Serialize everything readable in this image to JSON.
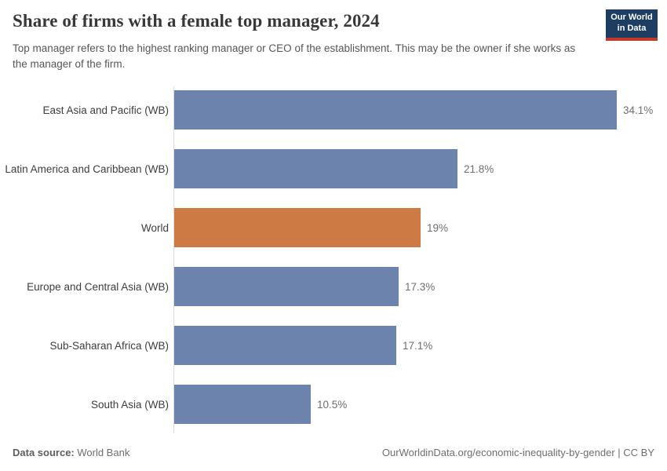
{
  "header": {
    "title": "Share of firms with a female top manager, 2024",
    "subtitle": "Top manager refers to the highest ranking manager or CEO of the establishment. This may be the owner if she works as the manager of the firm.",
    "logo": {
      "line1": "Our World",
      "line2": "in Data"
    }
  },
  "chart_data": {
    "type": "bar",
    "orientation": "horizontal",
    "title": "Share of firms with a female top manager, 2024",
    "unit": "%",
    "categories": [
      "East Asia and Pacific (WB)",
      "Latin America and Caribbean (WB)",
      "World",
      "Europe and Central Asia (WB)",
      "Sub-Saharan Africa (WB)",
      "South Asia (WB)"
    ],
    "values": [
      34.1,
      21.8,
      19,
      17.3,
      17.1,
      10.5
    ],
    "value_labels": [
      "34.1%",
      "21.8%",
      "19%",
      "17.3%",
      "17.1%",
      "10.5%"
    ],
    "bar_colors": [
      "#6c84ad",
      "#6c84ad",
      "#cd7a45",
      "#6c84ad",
      "#6c84ad",
      "#6c84ad"
    ],
    "highlight_category": "World",
    "xlim": [
      0,
      34.1
    ],
    "grid": false,
    "legend": false
  },
  "colors": {
    "bar_default": "#6c84ad",
    "bar_highlight": "#cd7a45",
    "axis_line": "#dedede",
    "logo_background": "#1d3d63",
    "logo_underline": "#c0392b"
  },
  "footer": {
    "source_label": "Data source:",
    "source_value": " World Bank",
    "link": "OurWorldinData.org/economic-inequality-by-gender | CC BY"
  }
}
